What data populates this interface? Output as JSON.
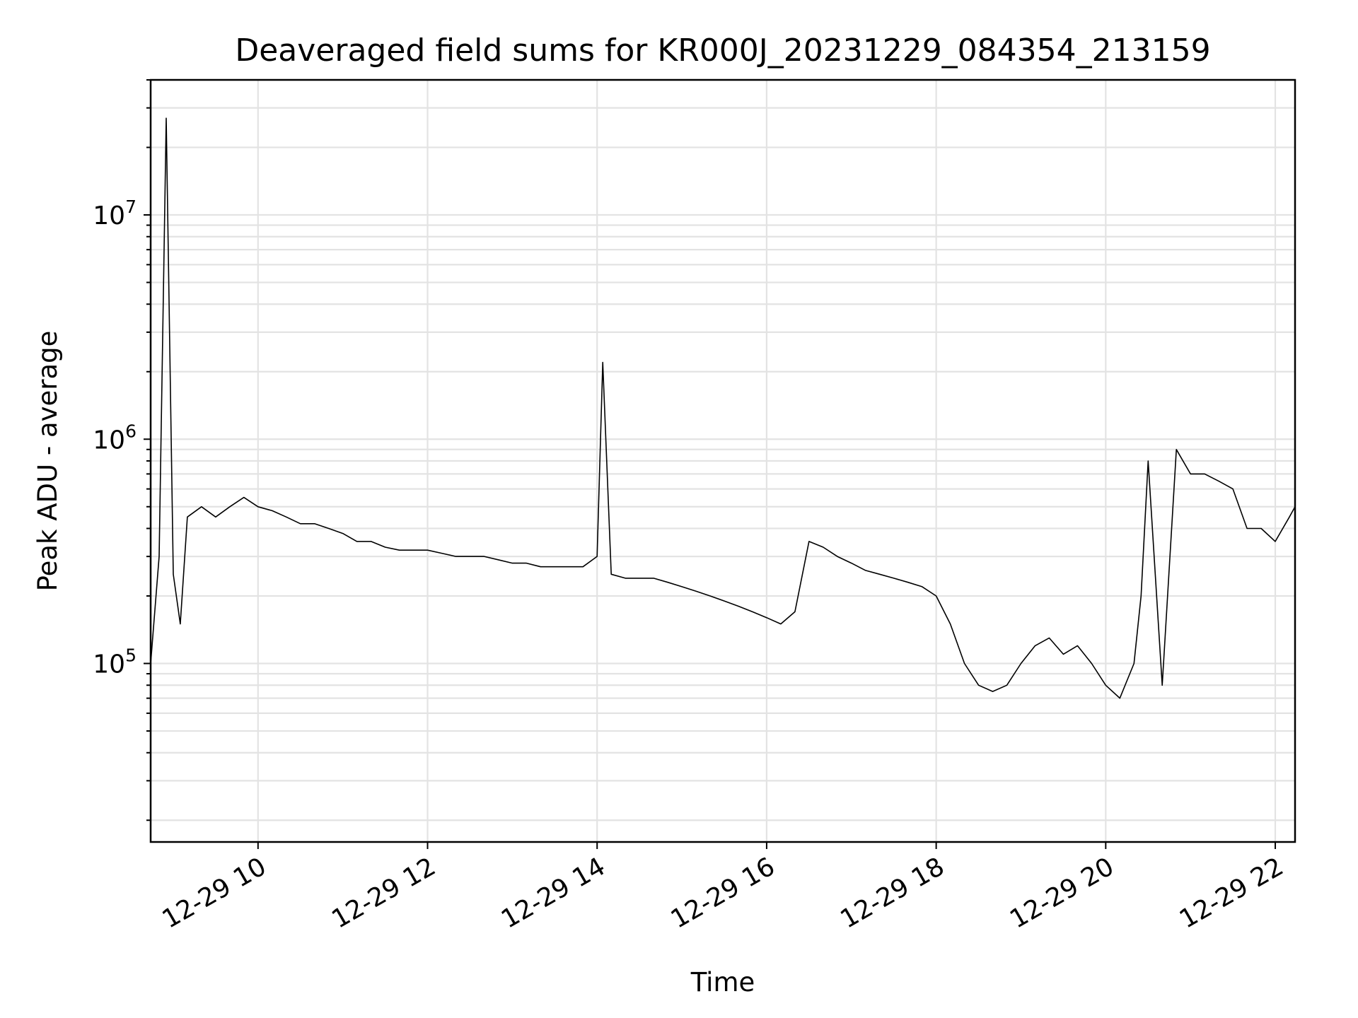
{
  "chart_data": {
    "type": "line",
    "title": "Deaveraged field sums for KR000J_20231229_084354_213159",
    "xlabel": "Time",
    "ylabel": "Peak ADU - average",
    "yscale": "log",
    "xlim": [
      "12-29 08:44",
      "12-29 22:14"
    ],
    "ylim": [
      16000,
      40000000
    ],
    "grid": true,
    "x_ticks": [
      "12-29 10",
      "12-29 12",
      "12-29 14",
      "12-29 16",
      "12-29 18",
      "12-29 20",
      "12-29 22"
    ],
    "y_ticks": [
      {
        "base": "10",
        "exp": "5",
        "value": 100000
      },
      {
        "base": "10",
        "exp": "6",
        "value": 1000000
      },
      {
        "base": "10",
        "exp": "7",
        "value": 10000000
      }
    ],
    "line_color": "#000000",
    "series": [
      {
        "x": [
          "12-29 08:44",
          "12-29 08:50",
          "12-29 08:55",
          "12-29 09:00",
          "12-29 09:05",
          "12-29 09:10",
          "12-29 09:20",
          "12-29 09:30",
          "12-29 09:40",
          "12-29 09:50",
          "12-29 10:00",
          "12-29 10:10",
          "12-29 10:20",
          "12-29 10:30",
          "12-29 10:40",
          "12-29 10:50",
          "12-29 11:00",
          "12-29 11:10",
          "12-29 11:20",
          "12-29 11:30",
          "12-29 11:40",
          "12-29 11:50",
          "12-29 12:00",
          "12-29 12:10",
          "12-29 12:20",
          "12-29 12:30",
          "12-29 12:40",
          "12-29 12:50",
          "12-29 13:00",
          "12-29 13:10",
          "12-29 13:20",
          "12-29 13:30",
          "12-29 13:40",
          "12-29 13:50",
          "12-29 14:00",
          "12-29 14:04",
          "12-29 14:10",
          "12-29 14:20",
          "12-29 14:30",
          "12-29 14:40",
          "12-29 14:50",
          "12-29 15:00",
          "12-29 15:10",
          "12-29 15:20",
          "12-29 15:30",
          "12-29 15:40",
          "12-29 15:50",
          "12-29 16:00",
          "12-29 16:10",
          "12-29 16:20",
          "12-29 16:30",
          "12-29 16:40",
          "12-29 16:50",
          "12-29 17:00",
          "12-29 17:10",
          "12-29 17:20",
          "12-29 17:30",
          "12-29 17:40",
          "12-29 17:50",
          "12-29 18:00",
          "12-29 18:10",
          "12-29 18:20",
          "12-29 18:30",
          "12-29 18:40",
          "12-29 18:50",
          "12-29 19:00",
          "12-29 19:10",
          "12-29 19:20",
          "12-29 19:30",
          "12-29 19:40",
          "12-29 19:50",
          "12-29 20:00",
          "12-29 20:10",
          "12-29 20:20",
          "12-29 20:25",
          "12-29 20:30",
          "12-29 20:40",
          "12-29 20:50",
          "12-29 21:00",
          "12-29 21:10",
          "12-29 21:20",
          "12-29 21:30",
          "12-29 21:40",
          "12-29 21:50",
          "12-29 22:00",
          "12-29 22:10",
          "12-29 22:14"
        ],
        "y": [
          100000,
          300000,
          27000000,
          250000,
          150000,
          450000,
          500000,
          450000,
          500000,
          550000,
          500000,
          480000,
          450000,
          420000,
          420000,
          400000,
          380000,
          350000,
          350000,
          330000,
          320000,
          320000,
          320000,
          310000,
          300000,
          300000,
          300000,
          290000,
          280000,
          280000,
          270000,
          270000,
          270000,
          270000,
          300000,
          2200000,
          250000,
          240000,
          240000,
          240000,
          230000,
          220000,
          210000,
          200000,
          190000,
          180000,
          170000,
          160000,
          150000,
          170000,
          350000,
          330000,
          300000,
          280000,
          260000,
          250000,
          240000,
          230000,
          220000,
          200000,
          150000,
          100000,
          80000,
          75000,
          80000,
          100000,
          120000,
          130000,
          110000,
          120000,
          100000,
          80000,
          70000,
          100000,
          200000,
          800000,
          80000,
          900000,
          700000,
          700000,
          650000,
          600000,
          400000,
          400000,
          350000,
          450000,
          500000
        ]
      }
    ]
  }
}
